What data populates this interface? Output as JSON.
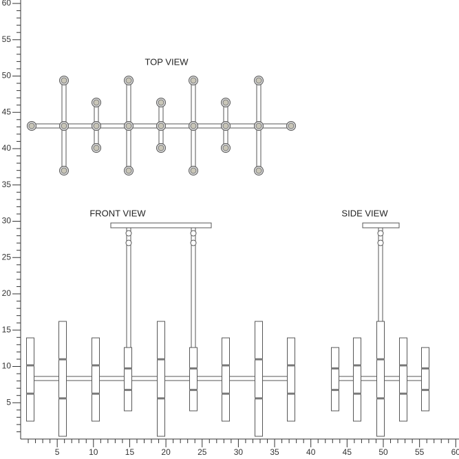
{
  "views": {
    "top": "TOP VIEW",
    "front": "FRONT VIEW",
    "side": "SIDE VIEW"
  },
  "ruler": {
    "x_labels": [
      5,
      10,
      15,
      20,
      25,
      30,
      35,
      40,
      45,
      50,
      55,
      60
    ],
    "y_labels": [
      5,
      10,
      15,
      20,
      25,
      30,
      35,
      40,
      45,
      50,
      55,
      60
    ]
  }
}
